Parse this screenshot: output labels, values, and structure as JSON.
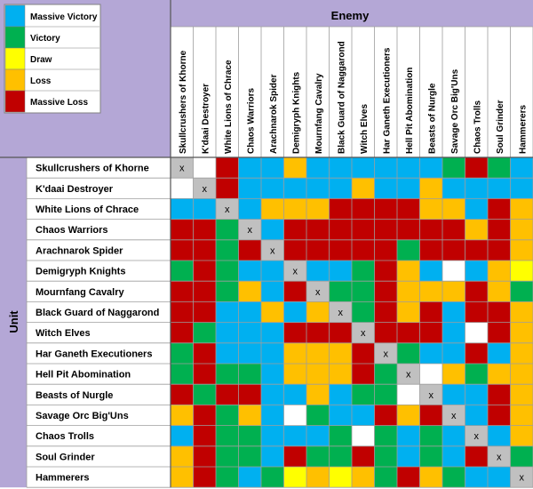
{
  "chart_data": {
    "type": "heatmap",
    "column_header": "Enemy",
    "row_header": "Unit",
    "legend": [
      {
        "code": "MV",
        "label": "Massive Victory",
        "color": "#00b0f0"
      },
      {
        "code": "V",
        "label": "Victory",
        "color": "#00b050"
      },
      {
        "code": "D",
        "label": "Draw",
        "color": "#ffff00"
      },
      {
        "code": "L",
        "label": "Loss",
        "color": "#ffc000"
      },
      {
        "code": "ML",
        "label": "Massive Loss",
        "color": "#c00000"
      }
    ],
    "self_marker": "x",
    "empty_color": "#ffffff",
    "units": [
      "Skullcrushers of Khorne",
      "K'daai Destroyer",
      "White Lions of Chrace",
      "Chaos Warriors",
      "Arachnarok Spider",
      "Demigryph Knights",
      "Mournfang Cavalry",
      "Black Guard of Naggarond",
      "Witch Elves",
      "Har Ganeth Executioners",
      "Hell Pit Abomination",
      "Beasts of Nurgle",
      "Savage Orc Big'Uns",
      "Chaos Trolls",
      "Soul Grinder",
      "Hammerers"
    ],
    "matrix": [
      [
        "X",
        "E",
        "ML",
        "MV",
        "MV",
        "L",
        "MV",
        "MV",
        "MV",
        "MV",
        "MV",
        "MV",
        "V",
        "ML",
        "V",
        "MV"
      ],
      [
        "E",
        "X",
        "ML",
        "MV",
        "MV",
        "MV",
        "MV",
        "MV",
        "L",
        "MV",
        "MV",
        "L",
        "MV",
        "MV",
        "MV",
        "MV"
      ],
      [
        "MV",
        "MV",
        "X",
        "MV",
        "L",
        "L",
        "L",
        "ML",
        "ML",
        "ML",
        "ML",
        "L",
        "L",
        "MV",
        "ML",
        "L"
      ],
      [
        "ML",
        "ML",
        "V",
        "X",
        "MV",
        "ML",
        "ML",
        "ML",
        "ML",
        "ML",
        "ML",
        "ML",
        "ML",
        "L",
        "ML",
        "L"
      ],
      [
        "ML",
        "ML",
        "V",
        "ML",
        "X",
        "ML",
        "ML",
        "ML",
        "ML",
        "ML",
        "V",
        "ML",
        "ML",
        "ML",
        "ML",
        "L"
      ],
      [
        "V",
        "ML",
        "V",
        "MV",
        "MV",
        "X",
        "MV",
        "MV",
        "V",
        "ML",
        "L",
        "MV",
        "E",
        "MV",
        "L",
        "D"
      ],
      [
        "ML",
        "ML",
        "V",
        "L",
        "MV",
        "ML",
        "X",
        "V",
        "V",
        "ML",
        "L",
        "L",
        "L",
        "ML",
        "L",
        "V"
      ],
      [
        "ML",
        "ML",
        "MV",
        "MV",
        "L",
        "MV",
        "L",
        "X",
        "V",
        "ML",
        "L",
        "ML",
        "MV",
        "ML",
        "ML",
        "L"
      ],
      [
        "ML",
        "V",
        "MV",
        "MV",
        "MV",
        "ML",
        "ML",
        "ML",
        "X",
        "ML",
        "ML",
        "ML",
        "MV",
        "E",
        "ML",
        "L"
      ],
      [
        "V",
        "ML",
        "MV",
        "MV",
        "MV",
        "L",
        "L",
        "L",
        "ML",
        "X",
        "V",
        "MV",
        "MV",
        "ML",
        "MV",
        "L"
      ],
      [
        "V",
        "ML",
        "V",
        "V",
        "MV",
        "L",
        "L",
        "L",
        "ML",
        "V",
        "X",
        "E",
        "L",
        "V",
        "L",
        "L"
      ],
      [
        "ML",
        "V",
        "ML",
        "ML",
        "MV",
        "MV",
        "L",
        "MV",
        "V",
        "V",
        "E",
        "X",
        "MV",
        "MV",
        "ML",
        "L"
      ],
      [
        "L",
        "ML",
        "V",
        "L",
        "MV",
        "E",
        "V",
        "MV",
        "MV",
        "ML",
        "L",
        "ML",
        "X",
        "MV",
        "ML",
        "L"
      ],
      [
        "MV",
        "ML",
        "V",
        "V",
        "MV",
        "MV",
        "MV",
        "V",
        "E",
        "V",
        "MV",
        "V",
        "MV",
        "X",
        "MV",
        "L"
      ],
      [
        "L",
        "ML",
        "V",
        "V",
        "MV",
        "ML",
        "V",
        "V",
        "ML",
        "V",
        "MV",
        "V",
        "MV",
        "ML",
        "X",
        "V"
      ],
      [
        "L",
        "ML",
        "V",
        "MV",
        "V",
        "D",
        "L",
        "D",
        "L",
        "V",
        "ML",
        "L",
        "V",
        "MV",
        "MV",
        "X"
      ]
    ]
  }
}
